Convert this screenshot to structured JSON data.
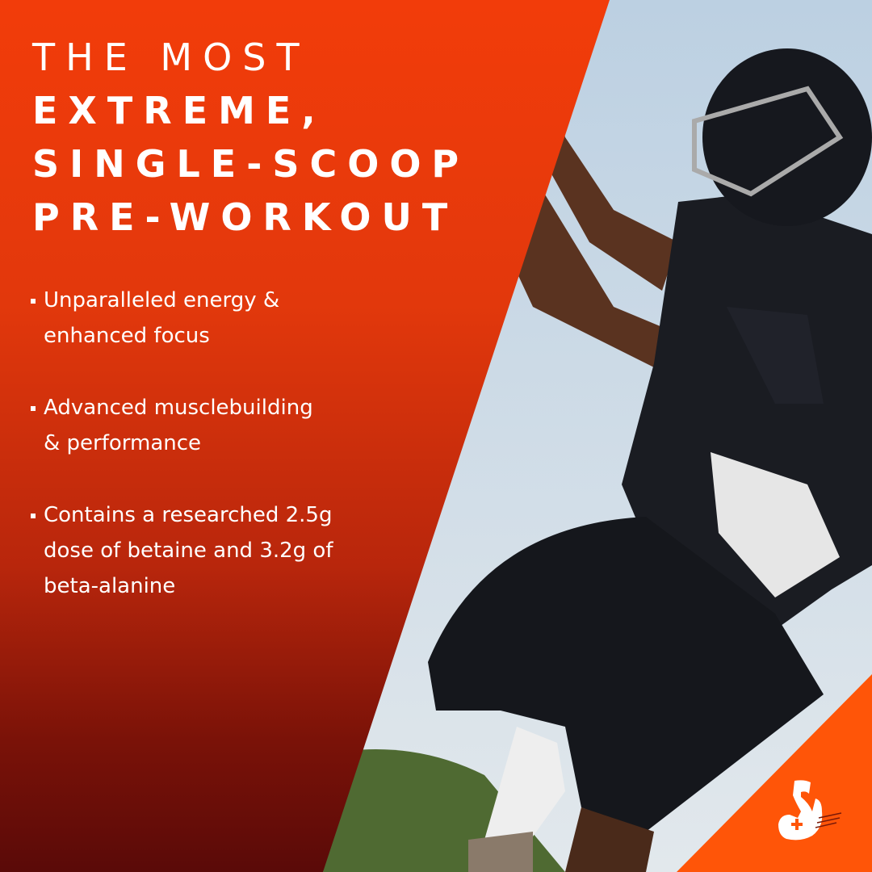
{
  "headline": {
    "line1": "THE MOST",
    "line2": "EXTREME,",
    "line3": "SINGLE-SCOOP",
    "line4": "PRE-WORKOUT"
  },
  "bullets": [
    {
      "line1": "Unparalleled energy &",
      "line2": "enhanced focus"
    },
    {
      "line1": "Advanced musclebuilding",
      "line2": "& performance"
    },
    {
      "line1": "Contains a researched 2.5g",
      "line2": "dose of betaine and 3.2g of",
      "line3": "beta-alanine"
    }
  ],
  "icons": {
    "logo": "flexed-bicep-plus-icon"
  },
  "colors": {
    "panel_top": "#f23c0a",
    "panel_bottom": "#5a0a08",
    "corner": "#ff5508",
    "sky": "#cfdbe6"
  }
}
